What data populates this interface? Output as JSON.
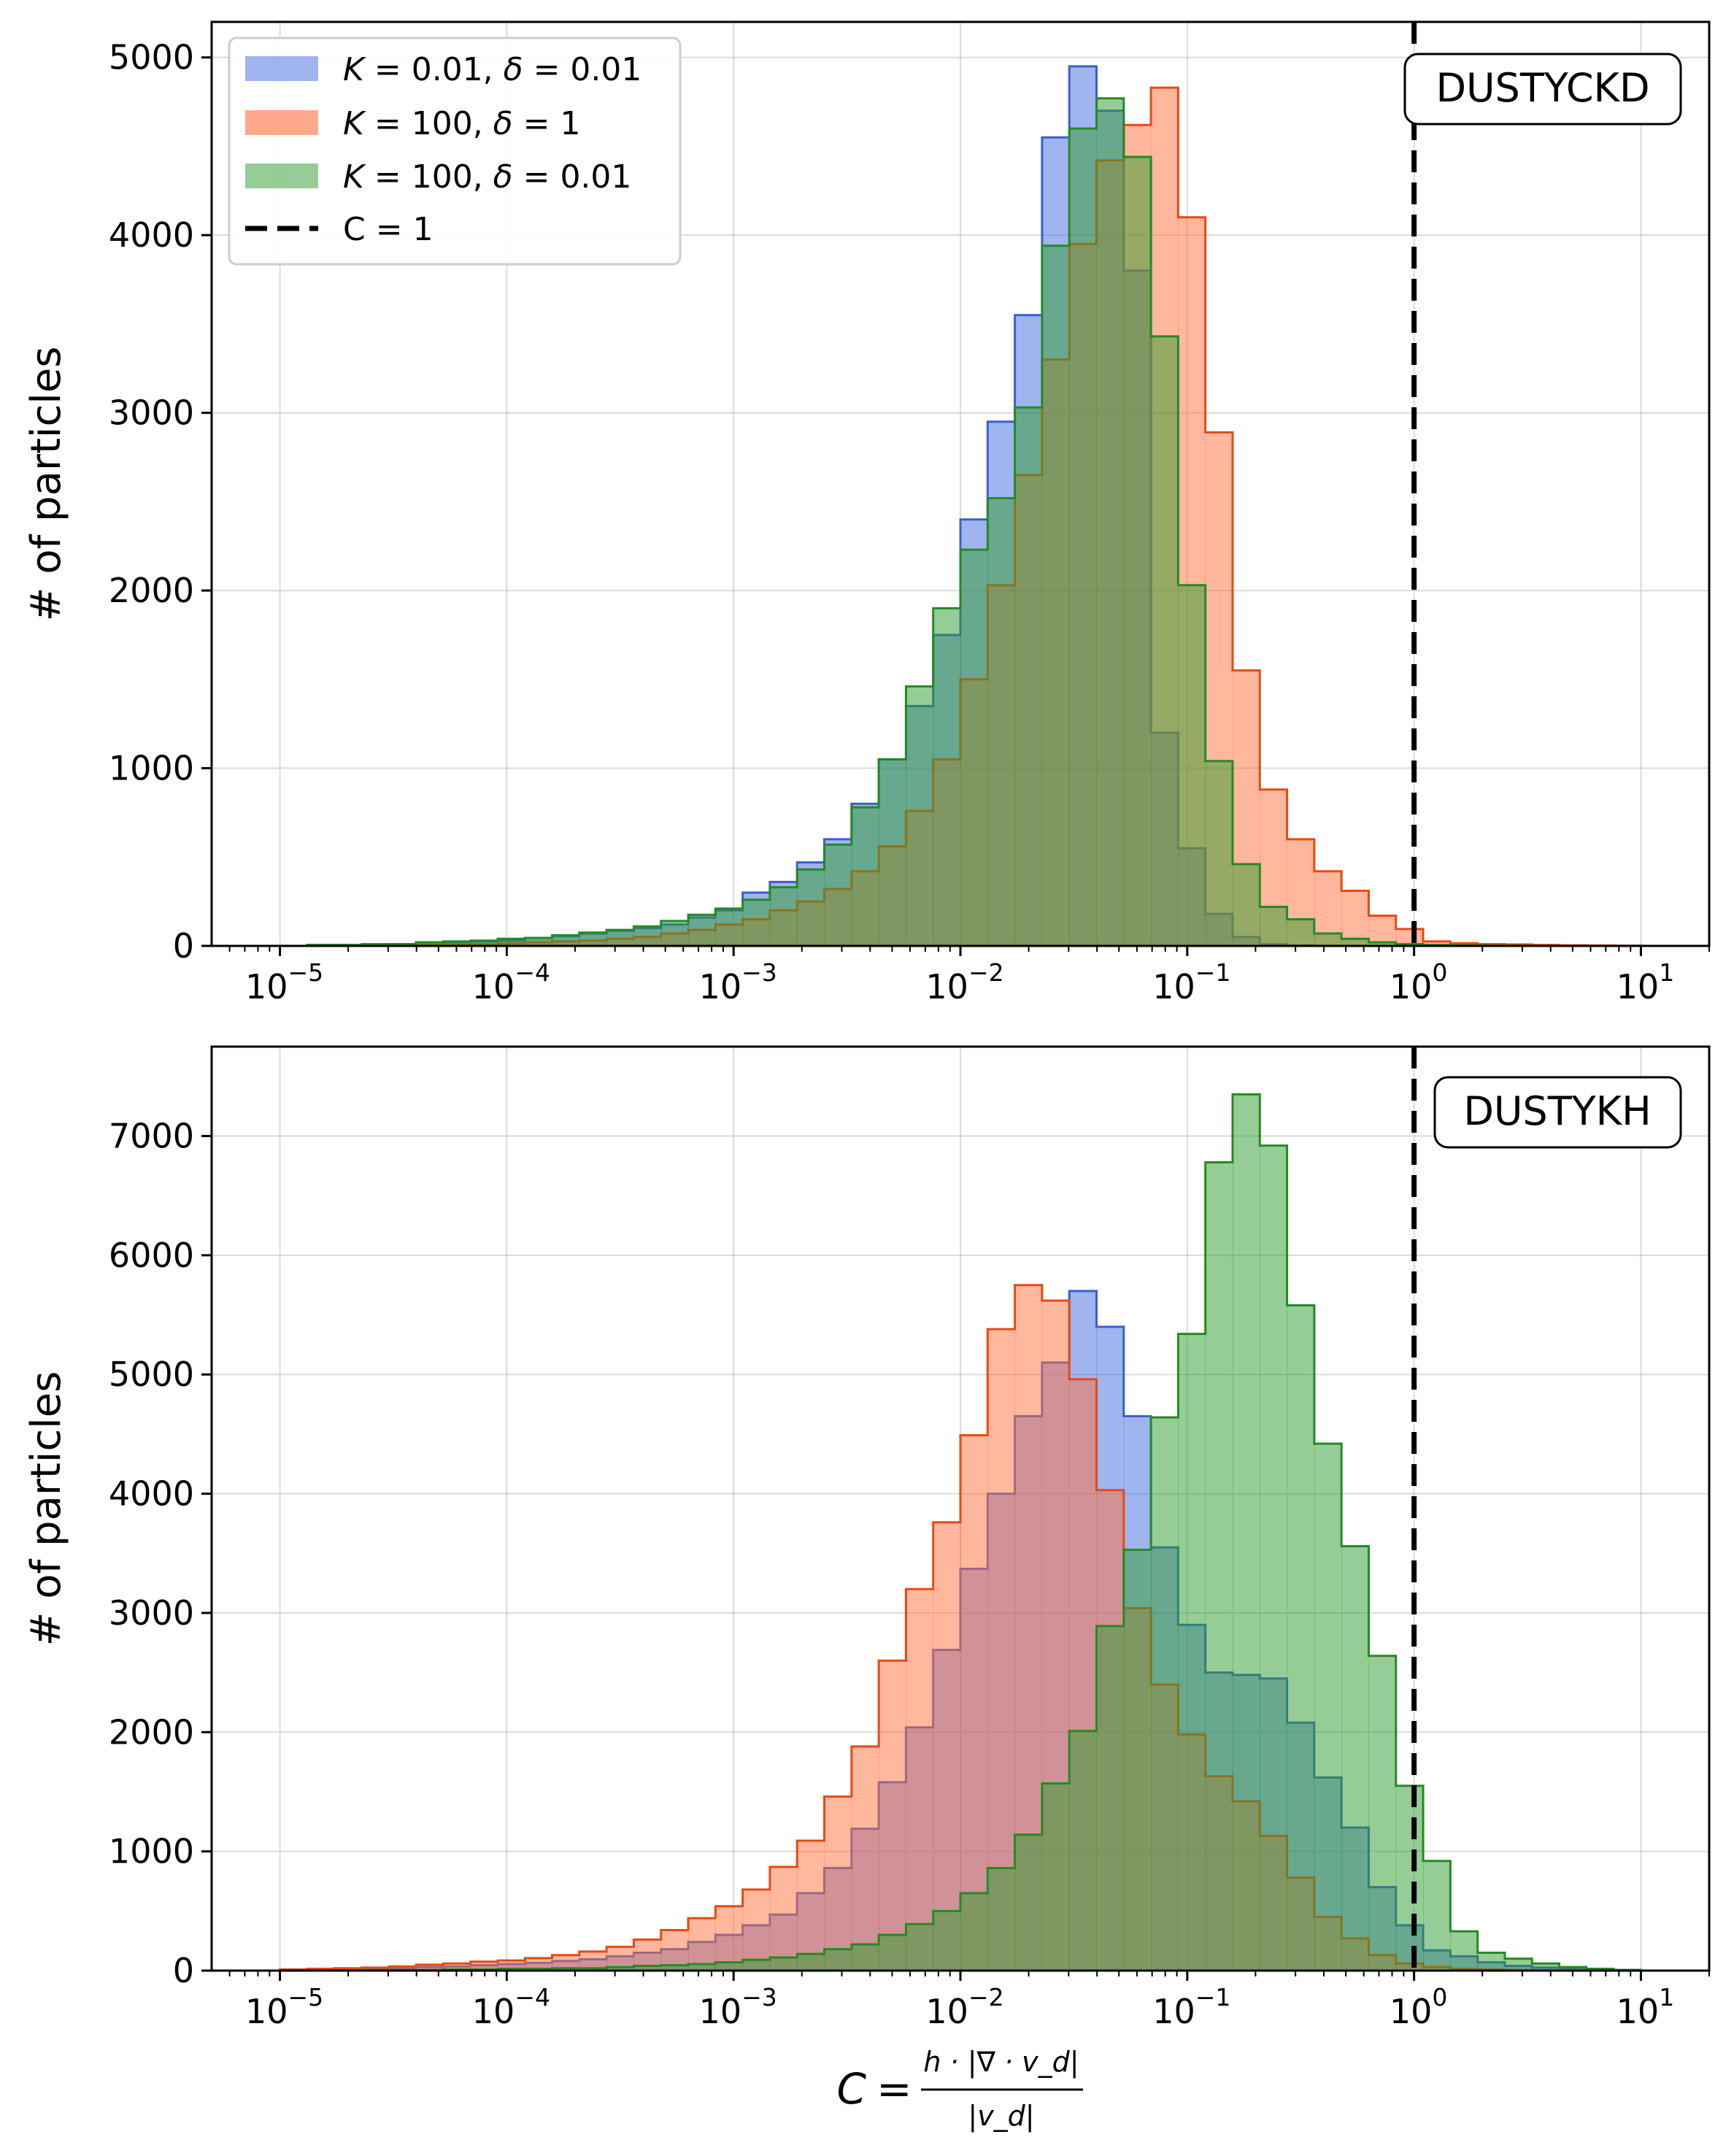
{
  "chart_data": [
    {
      "type": "histogram",
      "badge": "DUSTYCKD",
      "xscale": "log",
      "xlim": [
        5e-06,
        20
      ],
      "ylim": [
        0,
        5200
      ],
      "yticks": [
        0,
        1000,
        2000,
        3000,
        4000,
        5000
      ],
      "xticks": [
        {
          "base": "10",
          "exp": "−5"
        },
        {
          "base": "10",
          "exp": "−4"
        },
        {
          "base": "10",
          "exp": "−3"
        },
        {
          "base": "10",
          "exp": "−2"
        },
        {
          "base": "10",
          "exp": "−1"
        },
        {
          "base": "10",
          "exp": "0"
        },
        {
          "base": "10",
          "exp": "1"
        }
      ],
      "ylabel": "# of particles",
      "grid": true,
      "legend_position": "top-left",
      "reference_line": {
        "x": 1,
        "label": "C = 1"
      },
      "bins_log10": [
        -5,
        1,
        50
      ],
      "series": [
        {
          "name": "K = 0.01, δ = 0.01",
          "name_parts": {
            "k": "0.01",
            "d": "0.01"
          },
          "fill": "#4169e1",
          "edge": "#3a5fcd",
          "values": [
            0,
            5,
            5,
            10,
            10,
            20,
            20,
            25,
            30,
            45,
            55,
            70,
            85,
            100,
            120,
            160,
            200,
            300,
            360,
            470,
            600,
            800,
            1050,
            1350,
            1750,
            2400,
            2950,
            3550,
            4550,
            4950,
            4700,
            3800,
            1200,
            550,
            180,
            50,
            10,
            2,
            0,
            0,
            0,
            0,
            0,
            0,
            0,
            0,
            0,
            0,
            0,
            0
          ]
        },
        {
          "name": "K = 100, δ = 1",
          "name_parts": {
            "k": "100",
            "d": "1"
          },
          "fill": "#ff6f3c",
          "edge": "#e84a10",
          "values": [
            0,
            2,
            2,
            5,
            5,
            5,
            10,
            10,
            15,
            20,
            25,
            30,
            40,
            50,
            70,
            90,
            120,
            150,
            200,
            250,
            320,
            420,
            560,
            760,
            1050,
            1500,
            2030,
            2650,
            3300,
            3950,
            4420,
            4620,
            4830,
            4100,
            2890,
            1550,
            880,
            600,
            420,
            310,
            170,
            95,
            25,
            15,
            10,
            8,
            5,
            3,
            2,
            1
          ]
        },
        {
          "name": "K = 100, δ = 0.01",
          "name_parts": {
            "k": "100",
            "d": "0.01"
          },
          "fill": "#2e9b2e",
          "edge": "#238b23",
          "values": [
            0,
            5,
            5,
            8,
            10,
            20,
            25,
            30,
            40,
            45,
            60,
            75,
            90,
            110,
            140,
            175,
            210,
            260,
            330,
            430,
            570,
            780,
            1050,
            1460,
            1900,
            2230,
            2520,
            3030,
            3940,
            4600,
            4770,
            4440,
            3430,
            2030,
            1040,
            460,
            220,
            150,
            70,
            40,
            20,
            10,
            5,
            3,
            2,
            1,
            0,
            0,
            0,
            0
          ]
        }
      ]
    },
    {
      "type": "histogram",
      "badge": "DUSTYKH",
      "xscale": "log",
      "xlim": [
        5e-06,
        20
      ],
      "ylim": [
        0,
        7750
      ],
      "yticks": [
        0,
        1000,
        2000,
        3000,
        4000,
        5000,
        6000,
        7000
      ],
      "xticks": [
        {
          "base": "10",
          "exp": "−5"
        },
        {
          "base": "10",
          "exp": "−4"
        },
        {
          "base": "10",
          "exp": "−3"
        },
        {
          "base": "10",
          "exp": "−2"
        },
        {
          "base": "10",
          "exp": "−1"
        },
        {
          "base": "10",
          "exp": "0"
        },
        {
          "base": "10",
          "exp": "1"
        }
      ],
      "ylabel": "# of particles",
      "grid": true,
      "reference_line": {
        "x": 1
      },
      "bins_log10": [
        -5,
        1,
        50
      ],
      "xlabel": {
        "lhs": "C",
        "numerator": "h · |∇ · v_d|",
        "denominator": "|v_d|"
      },
      "series": [
        {
          "name": "K = 0.01, δ = 0.01",
          "fill": "#4169e1",
          "edge": "#3a5fcd",
          "values": [
            0,
            10,
            10,
            20,
            20,
            30,
            35,
            45,
            55,
            65,
            80,
            95,
            120,
            150,
            180,
            240,
            300,
            380,
            470,
            650,
            860,
            1190,
            1580,
            2040,
            2690,
            3370,
            4000,
            4650,
            5100,
            5700,
            5400,
            4650,
            3550,
            2900,
            2500,
            2480,
            2450,
            2080,
            1620,
            1200,
            700,
            380,
            170,
            120,
            70,
            40,
            25,
            15,
            8,
            5
          ]
        },
        {
          "name": "K = 100, δ = 1",
          "fill": "#ff6f3c",
          "edge": "#e84a10",
          "values": [
            10,
            15,
            20,
            25,
            35,
            50,
            60,
            75,
            85,
            105,
            130,
            160,
            200,
            260,
            340,
            440,
            540,
            680,
            870,
            1090,
            1460,
            1880,
            2600,
            3200,
            3760,
            4490,
            5380,
            5750,
            5620,
            4960,
            4030,
            3040,
            2400,
            1980,
            1630,
            1420,
            1130,
            780,
            450,
            270,
            130,
            60,
            30,
            15,
            10,
            5,
            3,
            2,
            1,
            0
          ]
        },
        {
          "name": "K = 100, δ = 0.01",
          "fill": "#2e9b2e",
          "edge": "#238b23",
          "values": [
            0,
            2,
            2,
            5,
            5,
            5,
            10,
            10,
            15,
            15,
            20,
            20,
            30,
            40,
            45,
            55,
            70,
            90,
            110,
            140,
            180,
            220,
            300,
            390,
            500,
            650,
            860,
            1140,
            1570,
            2010,
            2890,
            3530,
            4640,
            5340,
            6780,
            7350,
            6920,
            5580,
            4420,
            3560,
            2640,
            1550,
            920,
            330,
            150,
            100,
            60,
            30,
            15,
            5
          ]
        }
      ]
    }
  ]
}
